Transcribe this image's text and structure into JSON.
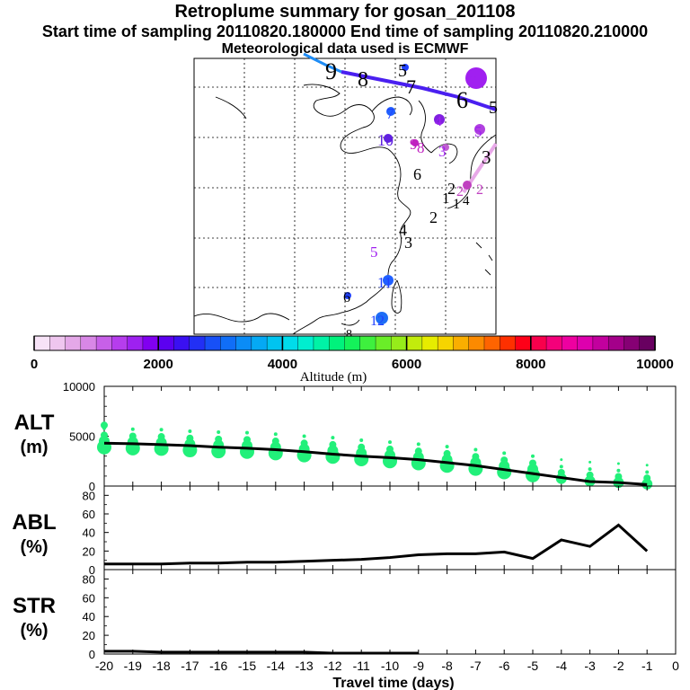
{
  "header": {
    "title": "Retroplume summary for gosan_201108",
    "sampling_line": "Start time of sampling 20110820.180000     End time of sampling 20110820.210000",
    "met_line": "Meteorological data used is ECMWF"
  },
  "colors": {
    "background": "#ffffff",
    "grid": "#000000",
    "coast": "#000000",
    "alt_points": "#22f07a",
    "line": "#000000"
  },
  "map": {
    "plume_labels": [
      {
        "text": "9",
        "color": "#000000"
      },
      {
        "text": "8",
        "color": "#000000"
      },
      {
        "text": "7",
        "color": "#000000"
      },
      {
        "text": "6",
        "color": "#000000"
      },
      {
        "text": "5",
        "color": "#000000"
      },
      {
        "text": "5",
        "color": "#000000"
      },
      {
        "text": "7",
        "color": "#a020f0"
      },
      {
        "text": "7",
        "color": "#2040ff"
      },
      {
        "text": "4",
        "color": "#a020f0"
      },
      {
        "text": "5",
        "color": "#a020f0"
      },
      {
        "text": "10",
        "color": "#6020e0"
      },
      {
        "text": "9",
        "color": "#c020c0"
      },
      {
        "text": "8",
        "color": "#c020c0"
      },
      {
        "text": "3",
        "color": "#a020f0"
      },
      {
        "text": "3",
        "color": "#000000"
      },
      {
        "text": "6",
        "color": "#000000"
      },
      {
        "text": "2",
        "color": "#000000"
      },
      {
        "text": "2",
        "color": "#c040c0"
      },
      {
        "text": "2",
        "color": "#c040c0"
      },
      {
        "text": "1",
        "color": "#000000"
      },
      {
        "text": "1",
        "color": "#000000"
      },
      {
        "text": "4",
        "color": "#000000"
      },
      {
        "text": "2",
        "color": "#000000"
      },
      {
        "text": "4",
        "color": "#000000"
      },
      {
        "text": "3",
        "color": "#000000"
      },
      {
        "text": "5",
        "color": "#a020f0"
      },
      {
        "text": "11",
        "color": "#2040ff"
      },
      {
        "text": "6",
        "color": "#000000"
      },
      {
        "text": "12",
        "color": "#2040ff"
      },
      {
        "text": "8",
        "color": "#000000"
      }
    ]
  },
  "colorbar": {
    "tick_labels": [
      "0",
      "2000",
      "4000",
      "6000",
      "8000",
      "10000"
    ],
    "label": "Altitude (m)",
    "min": 0,
    "max": 10000,
    "colors": [
      "#f7e3f7",
      "#efc6ef",
      "#e4a8e8",
      "#d887e6",
      "#c760e8",
      "#b63ded",
      "#9e21f0",
      "#8100f0",
      "#5c00f0",
      "#3a10f2",
      "#2230f5",
      "#1750f7",
      "#106ef7",
      "#0b8cf6",
      "#05a9f4",
      "#00c4f0",
      "#00dcea",
      "#00eecf",
      "#00f2a6",
      "#00f27c",
      "#14f25a",
      "#3ef03e",
      "#6aee28",
      "#96ec1a",
      "#c2ec0c",
      "#e6ec00",
      "#f6d400",
      "#faae00",
      "#fc8a00",
      "#fe6400",
      "#fe3000",
      "#fe0018",
      "#f8004c",
      "#f4007a",
      "#ee00a0",
      "#de00ae",
      "#c2009e",
      "#a4008a",
      "#860074",
      "#680060"
    ]
  },
  "chart_data": [
    {
      "type": "scatter",
      "name": "ALT",
      "ylabel": "ALT (m)",
      "ylim": [
        0,
        10000
      ],
      "yticks": [
        0,
        5000,
        10000
      ],
      "tick_labels": [
        "10000",
        "5000",
        "0"
      ],
      "x": [
        -20,
        -19,
        -18,
        -17,
        -16,
        -15,
        -14,
        -13,
        -12,
        -11,
        -10,
        -9,
        -8,
        -7,
        -6,
        -5,
        -4,
        -3,
        -2,
        -1
      ],
      "line_values": [
        4300,
        4250,
        4150,
        4050,
        3900,
        3800,
        3650,
        3450,
        3200,
        3000,
        2850,
        2650,
        2350,
        2050,
        1650,
        1250,
        850,
        450,
        350,
        150
      ],
      "point_values": [
        3900,
        3800,
        3750,
        3600,
        3500,
        3450,
        3300,
        3100,
        2950,
        2700,
        2500,
        2300,
        2050,
        1750,
        1400,
        1100,
        750,
        500,
        350,
        200
      ]
    },
    {
      "type": "line",
      "name": "ABL",
      "ylabel": "ABL (%)",
      "ylim": [
        0,
        90
      ],
      "yticks": [
        0,
        20,
        40,
        60,
        80
      ],
      "tick_labels": [
        "80",
        "60",
        "40",
        "20",
        "0"
      ],
      "x": [
        -20,
        -19,
        -18,
        -17,
        -16,
        -15,
        -14,
        -13,
        -12,
        -11,
        -10,
        -9,
        -8,
        -7,
        -6,
        -5,
        -4,
        -3,
        -2,
        -1
      ],
      "values": [
        6,
        6,
        6,
        7,
        7,
        8,
        8,
        9,
        10,
        11,
        13,
        16,
        17,
        17,
        19,
        12,
        32,
        25,
        48,
        20
      ]
    },
    {
      "type": "line",
      "name": "STR",
      "ylabel": "STR (%)",
      "ylim": [
        0,
        90
      ],
      "yticks": [
        0,
        20,
        40,
        60,
        80
      ],
      "tick_labels": [
        "80",
        "60",
        "40",
        "20",
        "0"
      ],
      "x": [
        -20,
        -19,
        -18,
        -17,
        -16,
        -15,
        -14,
        -13,
        -12,
        -11,
        -10,
        -9
      ],
      "values": [
        3,
        3,
        2,
        2,
        2,
        2,
        2,
        2,
        1,
        1,
        1,
        1
      ],
      "xlabel": "Travel time (days)",
      "x_tick_labels": [
        "-20",
        "-19",
        "-18",
        "-17",
        "-16",
        "-15",
        "-14",
        "-13",
        "-12",
        "-11",
        "-10",
        "-9",
        "-8",
        "-7",
        "-6",
        "-5",
        "-4",
        "-3",
        "-2",
        "-1",
        "0"
      ]
    }
  ],
  "panels": [
    {
      "label": "ALT",
      "unit": "(m)"
    },
    {
      "label": "ABL",
      "unit": "(%)"
    },
    {
      "label": "STR",
      "unit": "(%)"
    }
  ]
}
